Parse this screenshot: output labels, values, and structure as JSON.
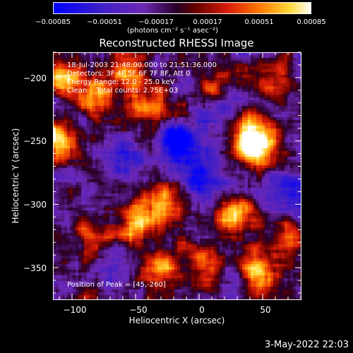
{
  "chart_data": {
    "type": "heatmap",
    "title": "Reconstructed RHESSI Image",
    "xlabel": "Heliocentric X (arcsec)",
    "ylabel": "Heliocentric Y (arcsec)",
    "xlim": [
      -115,
      80
    ],
    "ylim": [
      -375,
      -180
    ],
    "x_ticks": [
      -100,
      -50,
      0,
      50
    ],
    "y_ticks": [
      -200,
      -250,
      -300,
      -350
    ],
    "x_tick_labels": [
      "−100",
      "−50",
      "0",
      "50"
    ],
    "y_tick_labels": [
      "−200",
      "−250",
      "−300",
      "−350"
    ],
    "colorbar": {
      "ticks": [
        "−0.00085",
        "−0.00051",
        "−0.00017",
        "0.00017",
        "0.00051",
        "0.00085"
      ],
      "units": "(photons cm⁻² s⁻¹ asec⁻²)",
      "range": [
        -0.00085,
        0.00085
      ]
    },
    "annotations": [
      "18-Jul-2003 21:48:00.000 to 21:51:36.000",
      "Detectors: 3F 4F 5F 6F 7F 8F, Att 0",
      "Energy Range: 12.0 - 25.0 keV",
      "Clean    Total counts: 2.75E+03"
    ],
    "peak_label": "Position of Peak = [45,-260]",
    "peak": [
      45,
      -260
    ],
    "bright_regions": [
      {
        "x": 45,
        "y": -255,
        "v": 1.0
      },
      {
        "x": 40,
        "y": -240,
        "v": 0.8
      },
      {
        "x": 30,
        "y": -310,
        "v": 0.9
      },
      {
        "x": -110,
        "y": -250,
        "v": 0.85
      },
      {
        "x": -105,
        "y": -200,
        "v": 0.8
      },
      {
        "x": -80,
        "y": -215,
        "v": 0.7
      },
      {
        "x": -55,
        "y": -195,
        "v": 0.75
      },
      {
        "x": -40,
        "y": -225,
        "v": 0.65
      },
      {
        "x": -50,
        "y": -315,
        "v": 0.8
      },
      {
        "x": -30,
        "y": -300,
        "v": 0.7
      },
      {
        "x": -30,
        "y": -350,
        "v": 0.8
      },
      {
        "x": 50,
        "y": -355,
        "v": 0.85
      },
      {
        "x": 70,
        "y": -330,
        "v": 0.6
      },
      {
        "x": -85,
        "y": -330,
        "v": 0.6
      },
      {
        "x": 5,
        "y": -345,
        "v": 0.55
      },
      {
        "x": 60,
        "y": -200,
        "v": 0.5
      },
      {
        "x": 15,
        "y": -205,
        "v": 0.45
      }
    ],
    "dark_regions": [
      {
        "x": -15,
        "y": -250,
        "v": -0.8
      },
      {
        "x": 0,
        "y": -275,
        "v": -0.7
      },
      {
        "x": 65,
        "y": -290,
        "v": -0.6
      },
      {
        "x": -60,
        "y": -260,
        "v": -0.5
      },
      {
        "x": -70,
        "y": -345,
        "v": -0.4
      },
      {
        "x": 20,
        "y": -225,
        "v": -0.45
      }
    ]
  },
  "footer": {
    "timestamp": "3-May-2022 22:03"
  },
  "colors": {
    "background": "#000000",
    "foreground": "#ffffff"
  }
}
